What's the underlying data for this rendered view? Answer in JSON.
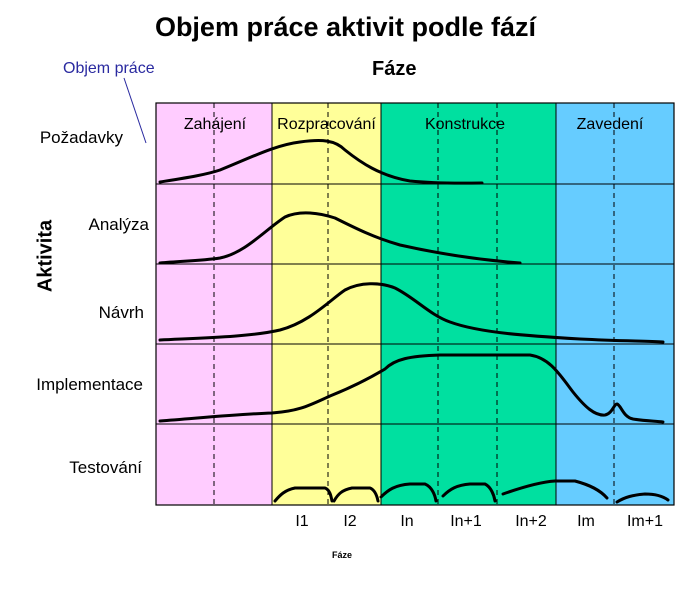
{
  "title": "Objem práce aktivit podle fází",
  "phase_header": "Fáze",
  "workload_label": "Objem práce",
  "activity_axis_label": "Aktivita",
  "phases": [
    {
      "label": "Zahájení",
      "color": "#ffccff"
    },
    {
      "label": "Rozpracování",
      "color": "#ffff99"
    },
    {
      "label": "Konstrukce",
      "color": "#00e0a0"
    },
    {
      "label": "Zavedení",
      "color": "#66ccff"
    }
  ],
  "activities": [
    {
      "label": "Požadavky"
    },
    {
      "label": "Analýza"
    },
    {
      "label": "Návrh"
    },
    {
      "label": "Implementace"
    },
    {
      "label": "Testování"
    }
  ],
  "iterations": [
    "I1",
    "I2",
    "In",
    "In+1",
    "In+2",
    "Im",
    "Im+1"
  ],
  "footer_label": "Fáze"
}
